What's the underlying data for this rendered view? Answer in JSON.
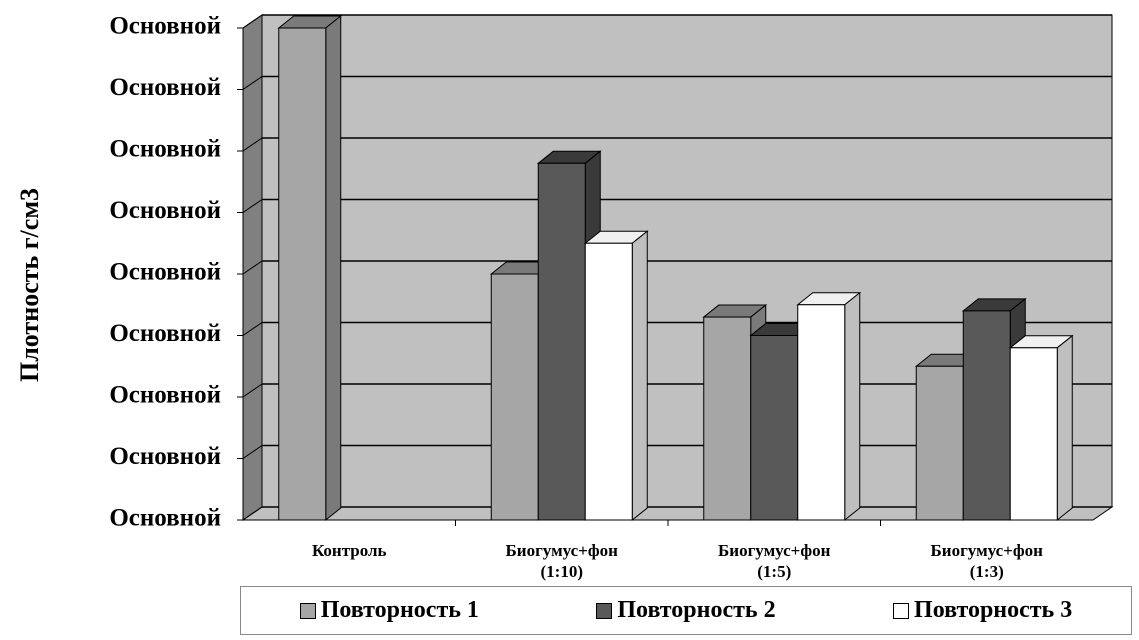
{
  "chart_data": {
    "type": "bar3d",
    "y_label": "Плотность г/см3",
    "categories": [
      "Контроль",
      "Биогумус+фон\n(1:10)",
      "Биогумус+фон\n(1:5)",
      "Биогумус+фон\n(1:3)"
    ],
    "series": [
      {
        "name": "Повторность 1",
        "color": "#a6a6a6",
        "values": [
          8.0,
          4.0,
          3.3,
          2.5
        ]
      },
      {
        "name": "Повторность 2",
        "color": "#595959",
        "values": [
          null,
          5.8,
          3.0,
          3.4
        ]
      },
      {
        "name": "Повторность 3",
        "color": "#ffffff",
        "values": [
          null,
          4.5,
          3.5,
          2.8
        ]
      }
    ],
    "ylim": [
      0,
      8
    ],
    "yticks": [
      {
        "value": 0,
        "label": "Основной"
      },
      {
        "value": 1,
        "label": "Основной"
      },
      {
        "value": 2,
        "label": "Основной"
      },
      {
        "value": 3,
        "label": "Основной"
      },
      {
        "value": 4,
        "label": "Основной"
      },
      {
        "value": 5,
        "label": "Основной"
      },
      {
        "value": 6,
        "label": "Основной"
      },
      {
        "value": 7,
        "label": "Основной"
      },
      {
        "value": 8,
        "label": "Основной"
      }
    ],
    "grid": true
  }
}
